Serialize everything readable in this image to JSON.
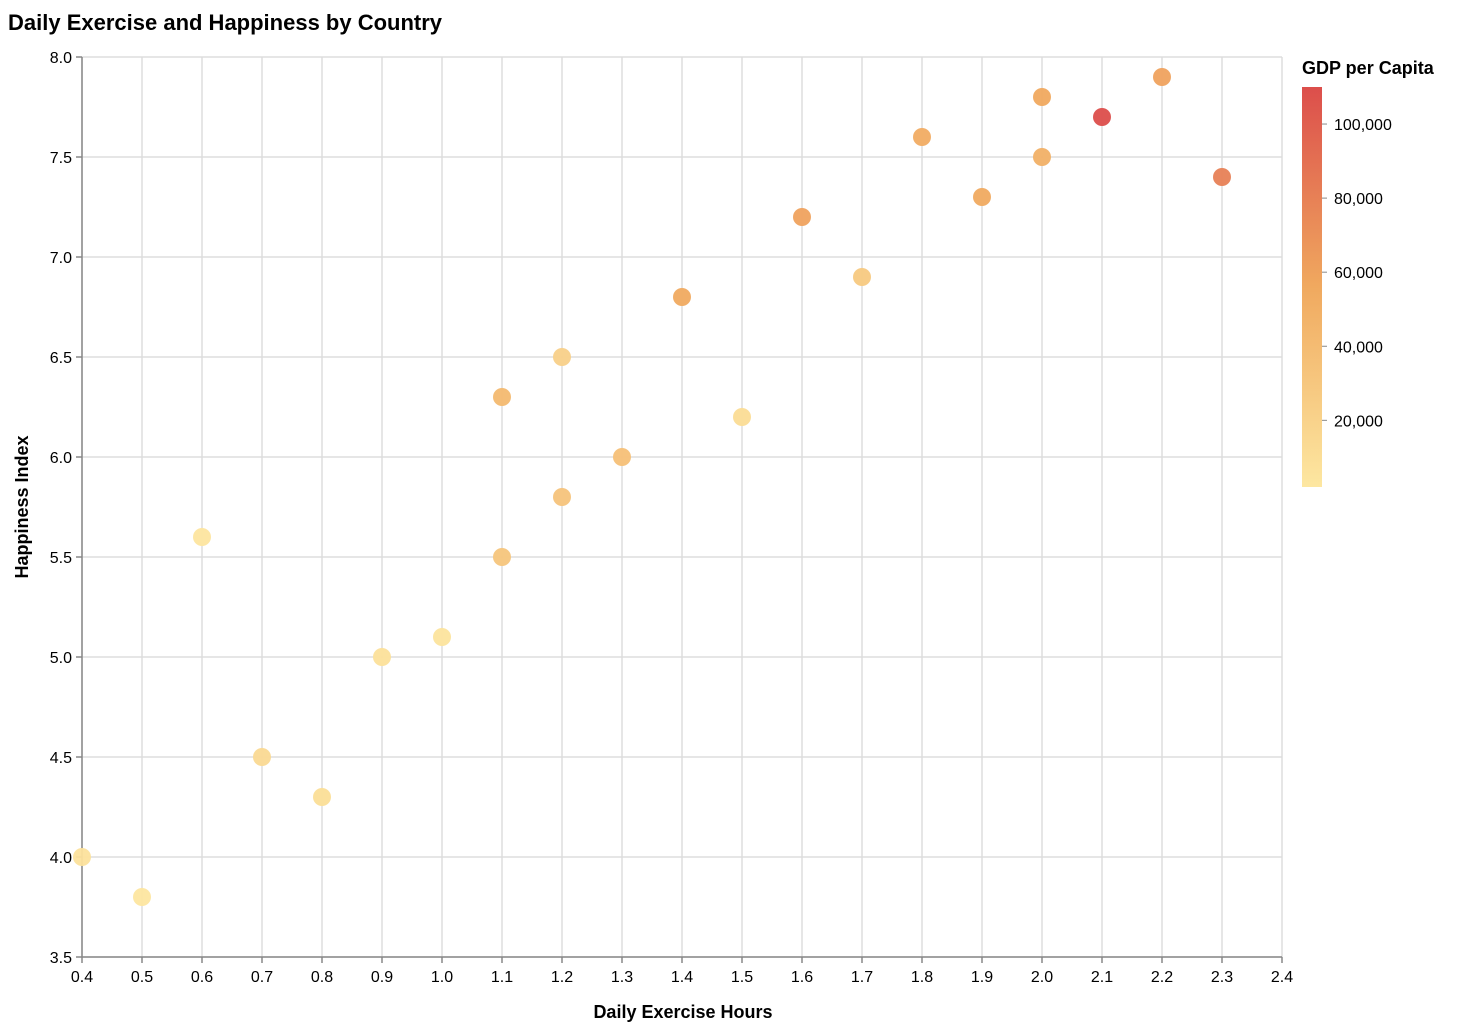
{
  "chart_data": {
    "type": "scatter",
    "title": "Daily Exercise and Happiness by Country",
    "xlabel": "Daily Exercise Hours",
    "ylabel": "Happiness Index",
    "xlim": [
      0.4,
      2.4
    ],
    "ylim": [
      3.5,
      8.0
    ],
    "x_ticks": [
      "0.4",
      "0.5",
      "0.6",
      "0.7",
      "0.8",
      "0.9",
      "1.0",
      "1.1",
      "1.2",
      "1.3",
      "1.4",
      "1.5",
      "1.6",
      "1.7",
      "1.8",
      "1.9",
      "2.0",
      "2.1",
      "2.2",
      "2.3",
      "2.4"
    ],
    "y_ticks": [
      "3.5",
      "4.0",
      "4.5",
      "5.0",
      "5.5",
      "6.0",
      "6.5",
      "7.0",
      "7.5",
      "8.0"
    ],
    "grid": true,
    "legend": {
      "title": "GDP per Capita",
      "placement": "right",
      "ticks": [
        "20,000",
        "40,000",
        "60,000",
        "80,000",
        "100,000"
      ],
      "domain": [
        2000,
        110000
      ]
    },
    "color_scale": {
      "low": "#fde7a1",
      "mid": "#f0a95f",
      "high": "#dc4e4b"
    },
    "points": [
      {
        "x": 0.4,
        "y": 4.0,
        "gdp": 6000
      },
      {
        "x": 0.5,
        "y": 3.8,
        "gdp": 3000
      },
      {
        "x": 0.6,
        "y": 5.6,
        "gdp": 4000
      },
      {
        "x": 0.7,
        "y": 4.5,
        "gdp": 14000
      },
      {
        "x": 0.8,
        "y": 4.3,
        "gdp": 10000
      },
      {
        "x": 0.9,
        "y": 5.0,
        "gdp": 8000
      },
      {
        "x": 1.0,
        "y": 5.1,
        "gdp": 5000
      },
      {
        "x": 1.1,
        "y": 6.3,
        "gdp": 42000
      },
      {
        "x": 1.1,
        "y": 5.5,
        "gdp": 32000
      },
      {
        "x": 1.2,
        "y": 6.5,
        "gdp": 22000
      },
      {
        "x": 1.2,
        "y": 5.8,
        "gdp": 33000
      },
      {
        "x": 1.3,
        "y": 6.0,
        "gdp": 36000
      },
      {
        "x": 1.4,
        "y": 6.8,
        "gdp": 55000
      },
      {
        "x": 1.5,
        "y": 6.2,
        "gdp": 12000
      },
      {
        "x": 1.6,
        "y": 7.2,
        "gdp": 60000
      },
      {
        "x": 1.7,
        "y": 6.9,
        "gdp": 28000
      },
      {
        "x": 1.8,
        "y": 7.6,
        "gdp": 53000
      },
      {
        "x": 1.9,
        "y": 7.3,
        "gdp": 55000
      },
      {
        "x": 2.0,
        "y": 7.8,
        "gdp": 56000
      },
      {
        "x": 2.0,
        "y": 7.5,
        "gdp": 50000
      },
      {
        "x": 2.1,
        "y": 7.7,
        "gdp": 110000
      },
      {
        "x": 2.2,
        "y": 7.9,
        "gdp": 60000
      },
      {
        "x": 2.3,
        "y": 7.4,
        "gdp": 80000
      }
    ]
  }
}
